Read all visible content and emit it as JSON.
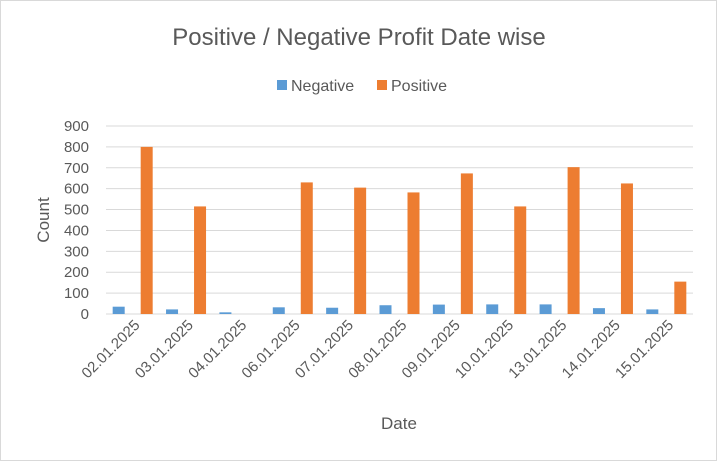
{
  "chart_data": {
    "type": "bar",
    "title": "Positive / Negative Profit Date wise",
    "xlabel": "Date",
    "ylabel": "Count",
    "ylim": [
      0,
      900
    ],
    "yticks": [
      0,
      100,
      200,
      300,
      400,
      500,
      600,
      700,
      800,
      900
    ],
    "grid": true,
    "legend_position": "top",
    "categories": [
      "02.01.2025",
      "03.01.2025",
      "04.01.2025",
      "06.01.2025",
      "07.01.2025",
      "08.01.2025",
      "09.01.2025",
      "10.01.2025",
      "13.01.2025",
      "14.01.2025",
      "15.01.2025"
    ],
    "series": [
      {
        "name": "Negative",
        "color": "#5b9bd5",
        "values": [
          35,
          22,
          8,
          32,
          30,
          42,
          45,
          46,
          46,
          28,
          22
        ]
      },
      {
        "name": "Positive",
        "color": "#ed7d31",
        "values": [
          800,
          515,
          0,
          630,
          605,
          582,
          673,
          515,
          703,
          625,
          155
        ]
      }
    ]
  }
}
